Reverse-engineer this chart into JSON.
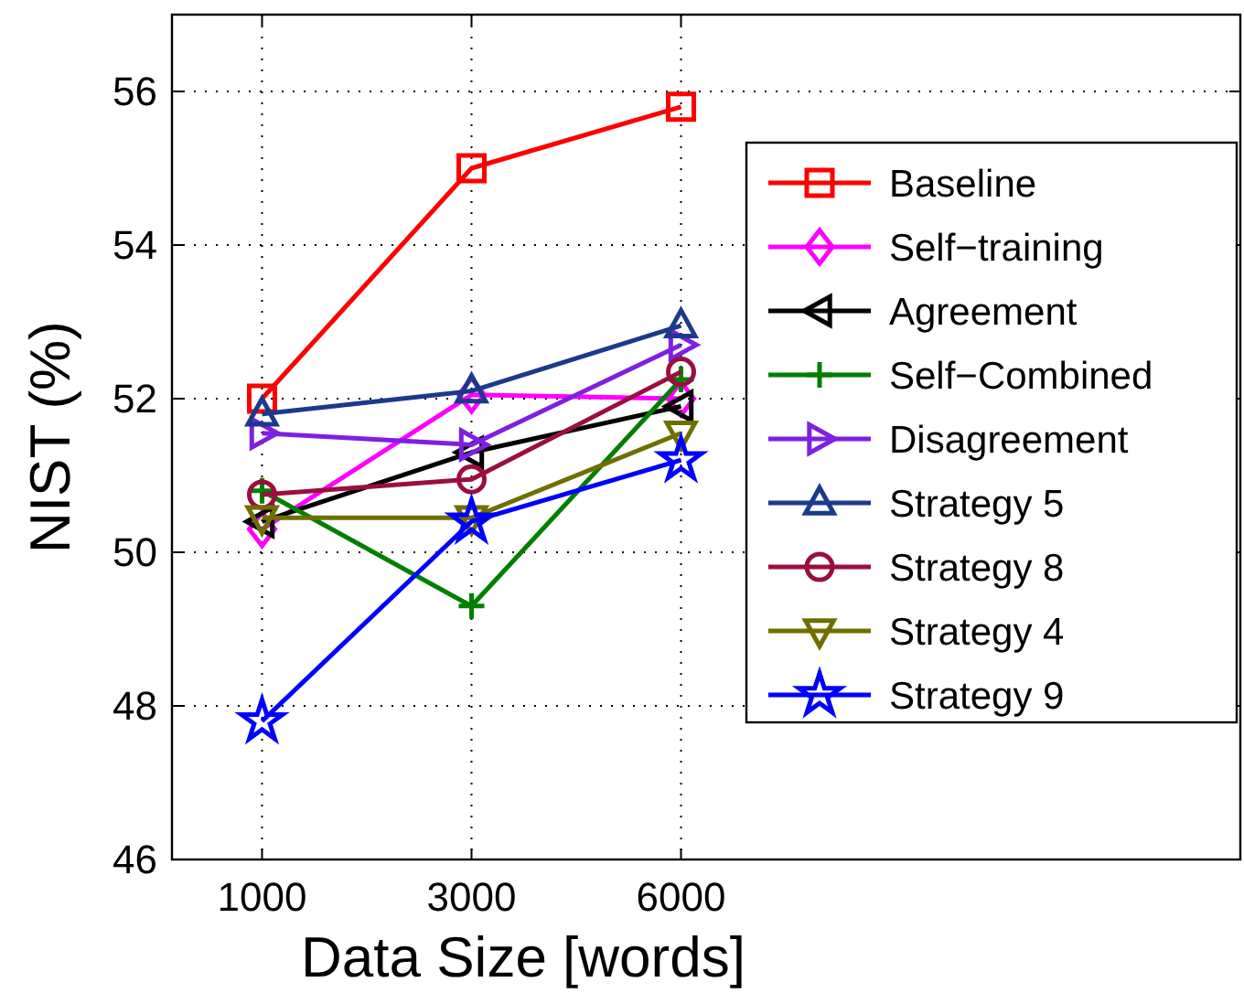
{
  "chart_data": {
    "type": "line",
    "xlabel": "Data Size [words]",
    "ylabel": "NIST (%)",
    "categories": [
      "1000",
      "3000",
      "6000"
    ],
    "ylim": [
      46,
      57
    ],
    "yticks": [
      46,
      48,
      50,
      52,
      54,
      56
    ],
    "grid": true,
    "legend": "right",
    "line_style": "solid",
    "series": [
      {
        "name": "Baseline",
        "color": "#ff0000",
        "marker": "square",
        "values": [
          52.0,
          55.0,
          55.8
        ]
      },
      {
        "name": "Self−training",
        "color": "#ff00ff",
        "marker": "diamond",
        "values": [
          50.3,
          52.05,
          52.0
        ]
      },
      {
        "name": "Agreement",
        "color": "#000000",
        "marker": "triangle-left",
        "values": [
          50.4,
          51.3,
          51.9
        ]
      },
      {
        "name": "Self−Combined",
        "color": "#007f00",
        "marker": "cross",
        "values": [
          50.8,
          49.3,
          52.25
        ]
      },
      {
        "name": "Disagreement",
        "color": "#7f1fdf",
        "marker": "triangle-right",
        "values": [
          51.55,
          51.4,
          52.7
        ]
      },
      {
        "name": "Strategy 5",
        "color": "#1a3a8c",
        "marker": "triangle",
        "values": [
          51.8,
          52.1,
          52.95
        ]
      },
      {
        "name": "Strategy 8",
        "color": "#9a0f3f",
        "marker": "circle",
        "values": [
          50.75,
          50.95,
          52.35
        ]
      },
      {
        "name": "Strategy 4",
        "color": "#6f6f00",
        "marker": "triangle-down",
        "values": [
          50.45,
          50.45,
          51.55
        ]
      },
      {
        "name": "Strategy 9",
        "color": "#0000ff",
        "marker": "star",
        "values": [
          47.8,
          50.4,
          51.2
        ]
      }
    ]
  }
}
